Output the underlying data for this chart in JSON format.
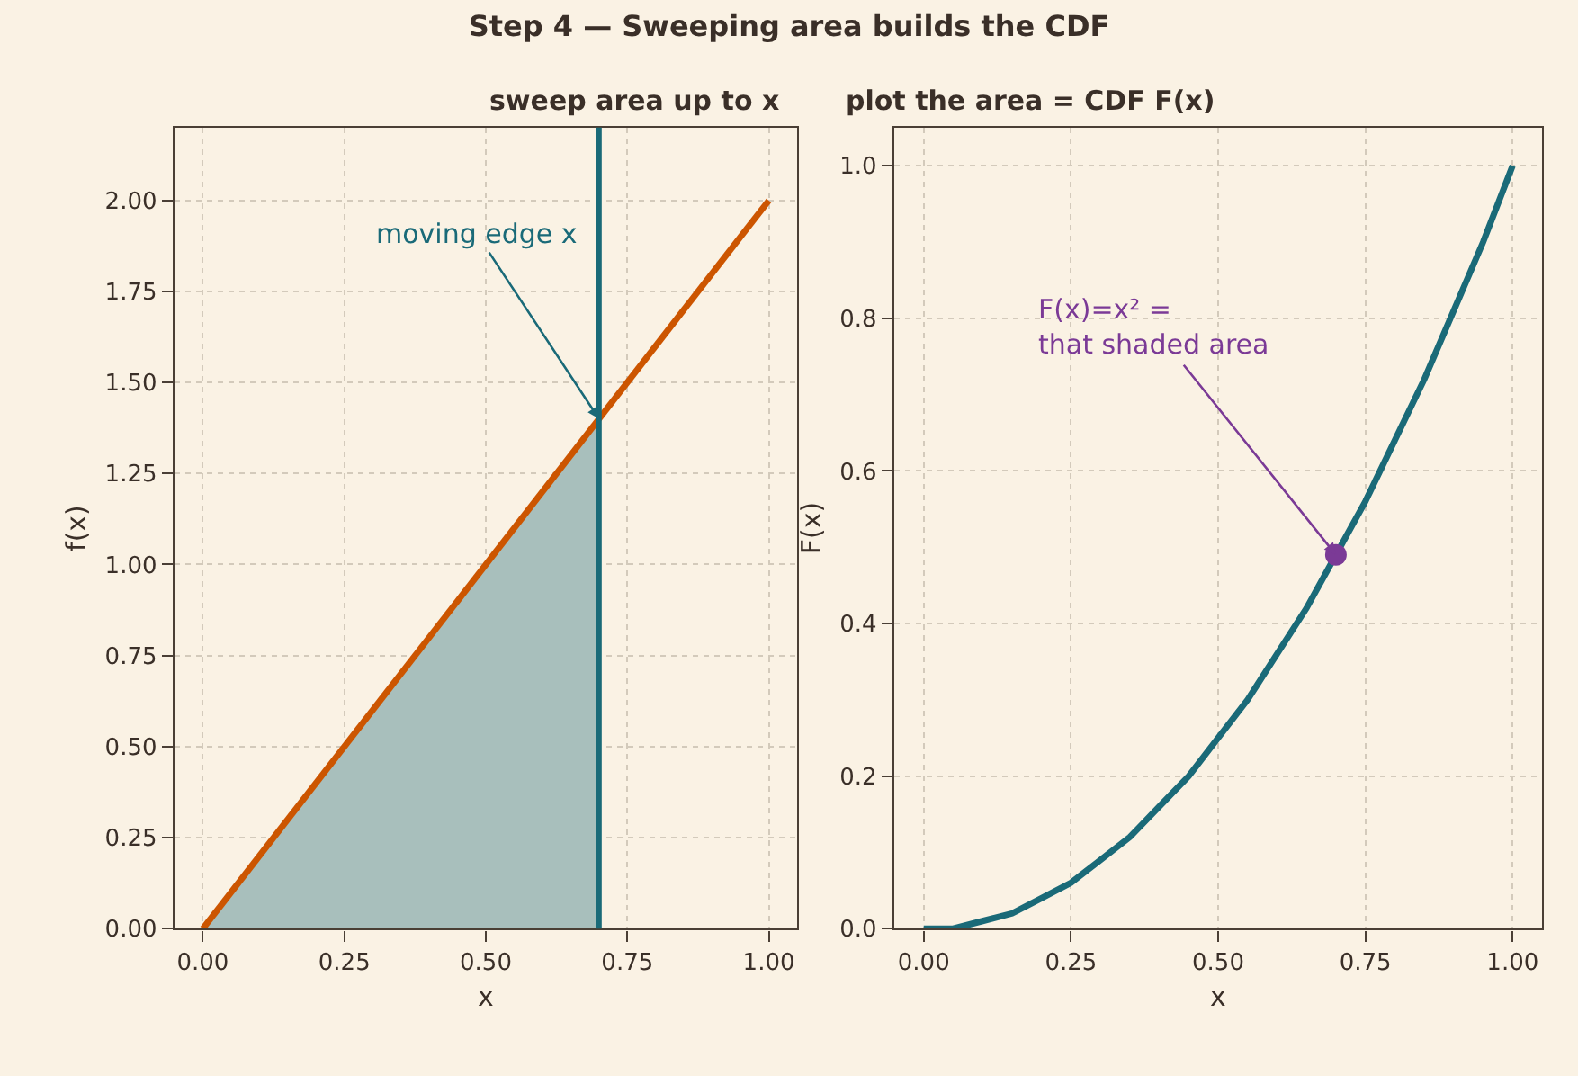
{
  "chart_data": [
    {
      "type": "line",
      "title": "Step 4 — Sweeping area builds the CDF",
      "subtitle": "sweep area up to x",
      "xlabel": "x",
      "ylabel": "f(x)",
      "xlim": [
        -0.05,
        1.05
      ],
      "xticks": [
        {
          "value": 0,
          "label": "0.00"
        },
        {
          "value": 0.25,
          "label": "0.25"
        },
        {
          "value": 0.5,
          "label": "0.50"
        },
        {
          "value": 0.75,
          "label": "0.75"
        },
        {
          "value": 1,
          "label": "1.00"
        }
      ],
      "ylim": [
        0,
        2.2
      ],
      "yticks": [
        {
          "value": 0,
          "label": "0.00"
        },
        {
          "value": 0.25,
          "label": "0.25"
        },
        {
          "value": 0.5,
          "label": "0.50"
        },
        {
          "value": 0.75,
          "label": "0.75"
        },
        {
          "value": 1,
          "label": "1.00"
        },
        {
          "value": 1.25,
          "label": "1.25"
        },
        {
          "value": 1.5,
          "label": "1.50"
        },
        {
          "value": 1.75,
          "label": "1.75"
        },
        {
          "value": 2,
          "label": "2.00"
        }
      ],
      "grid": true,
      "series": [
        {
          "type": "area",
          "color": "#a8bfbc",
          "x": [
            0,
            0.7
          ],
          "values": [
            0,
            1.4
          ]
        },
        {
          "color": "#cc5500",
          "x": [
            0,
            1
          ],
          "values": [
            0,
            2
          ]
        }
      ],
      "ref_lines": [
        {
          "axis": "x",
          "value": 0.7,
          "color": "#1a6a78"
        }
      ],
      "annotations": [
        {
          "text": "moving edge x",
          "x": 0.7,
          "y": 1.4
        }
      ]
    },
    {
      "type": "line",
      "subtitle": "plot the area = CDF F(x)",
      "xlabel": "x",
      "ylabel": "F(x)",
      "xlim": [
        -0.05,
        1.05
      ],
      "xticks": [
        {
          "value": 0,
          "label": "0.00"
        },
        {
          "value": 0.25,
          "label": "0.25"
        },
        {
          "value": 0.5,
          "label": "0.50"
        },
        {
          "value": 0.75,
          "label": "0.75"
        },
        {
          "value": 1,
          "label": "1.00"
        }
      ],
      "ylim": [
        0,
        1.05
      ],
      "yticks": [
        {
          "value": 0,
          "label": "0.0"
        },
        {
          "value": 0.2,
          "label": "0.2"
        },
        {
          "value": 0.4,
          "label": "0.4"
        },
        {
          "value": 0.6,
          "label": "0.6"
        },
        {
          "value": 0.8,
          "label": "0.8"
        },
        {
          "value": 1,
          "label": "1.0"
        }
      ],
      "grid": true,
      "series": [
        {
          "color": "#1a6a78",
          "x": [
            0,
            0.05,
            0.1,
            0.15,
            0.2,
            0.25,
            0.3,
            0.35,
            0.4,
            0.45,
            0.5,
            0.55,
            0.6,
            0.65,
            0.7,
            0.75,
            0.8,
            0.85,
            0.9,
            0.95,
            1
          ],
          "values": [
            0,
            0.0,
            0.01,
            0.02,
            0.04,
            0.06,
            0.09,
            0.12,
            0.16,
            0.2,
            0.25,
            0.3,
            0.36,
            0.42,
            0.49,
            0.56,
            0.64,
            0.72,
            0.81,
            0.9,
            1
          ]
        },
        {
          "type": "scatter",
          "color": "#7b3a96",
          "marker": "circle",
          "x": [
            0.7
          ],
          "values": [
            0.49
          ]
        }
      ],
      "annotations": [
        {
          "text": "F(x)=x² =\nthat shaded area",
          "x": 0.7,
          "y": 0.49
        }
      ]
    }
  ]
}
